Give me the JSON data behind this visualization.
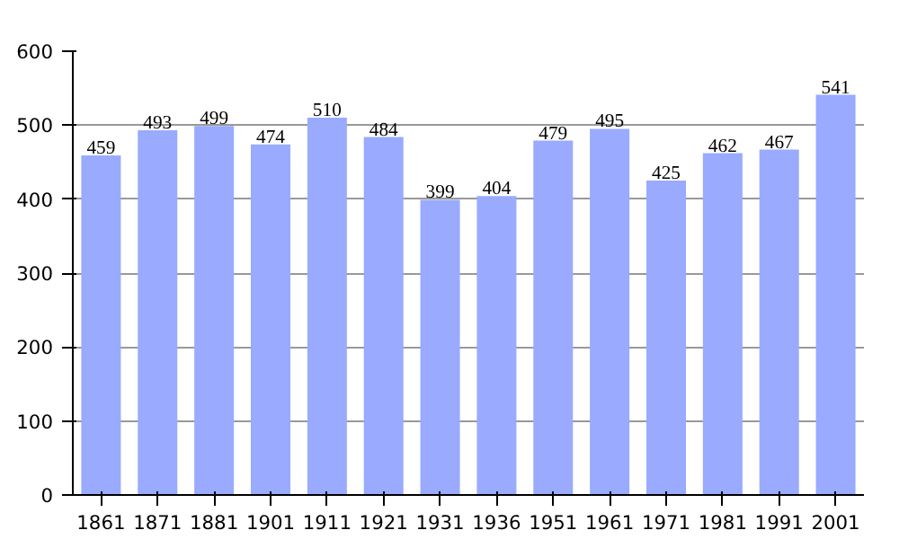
{
  "chart_data": {
    "type": "bar",
    "categories": [
      "1861",
      "1871",
      "1881",
      "1901",
      "1911",
      "1921",
      "1931",
      "1936",
      "1951",
      "1961",
      "1971",
      "1981",
      "1991",
      "2001"
    ],
    "values": [
      459,
      493,
      499,
      474,
      510,
      484,
      399,
      404,
      479,
      495,
      425,
      462,
      467,
      541
    ],
    "color": "#99aaff",
    "ylim": [
      0,
      600
    ],
    "yticks": [
      0,
      100,
      200,
      300,
      400,
      500,
      600
    ],
    "grid": "y",
    "data_labels": true
  }
}
